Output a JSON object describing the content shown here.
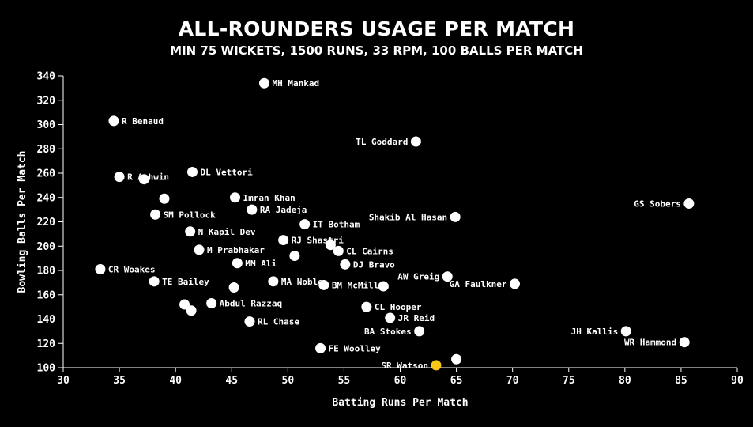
{
  "chart_data": {
    "type": "scatter",
    "title": "ALL-ROUNDERS USAGE PER MATCH",
    "subtitle": "MIN 75 WICKETS, 1500 RUNS, 33 RPM, 100 BALLS PER MATCH",
    "xlabel": "Batting Runs Per Match",
    "ylabel": "Bowling Balls Per Match",
    "xlim": [
      30,
      90
    ],
    "ylim": [
      100,
      340
    ],
    "xticks": [
      30,
      35,
      40,
      45,
      50,
      55,
      60,
      65,
      70,
      75,
      80,
      85,
      90
    ],
    "yticks": [
      100,
      120,
      140,
      160,
      180,
      200,
      220,
      240,
      260,
      280,
      300,
      320,
      340
    ],
    "grid": false,
    "colors": {
      "default": "#ffffff",
      "highlight": "#f5c518"
    },
    "points": [
      {
        "label": "MH Mankad",
        "x": 47.9,
        "y": 334,
        "anchor": "right"
      },
      {
        "label": "R Benaud",
        "x": 34.5,
        "y": 303,
        "anchor": "right"
      },
      {
        "label": "TL Goddard",
        "x": 61.4,
        "y": 286,
        "anchor": "left"
      },
      {
        "label": "DL Vettori",
        "x": 41.5,
        "y": 261,
        "anchor": "right"
      },
      {
        "label": "R Ashwin",
        "x": 35.0,
        "y": 257,
        "anchor": "right"
      },
      {
        "label": "",
        "x": 37.2,
        "y": 255
      },
      {
        "label": "Imran Khan",
        "x": 45.3,
        "y": 240,
        "anchor": "right"
      },
      {
        "label": "",
        "x": 39.0,
        "y": 239
      },
      {
        "label": "GS Sobers",
        "x": 85.7,
        "y": 235,
        "anchor": "left"
      },
      {
        "label": "RA Jadeja",
        "x": 46.8,
        "y": 230,
        "anchor": "right"
      },
      {
        "label": "SM Pollock",
        "x": 38.2,
        "y": 226,
        "anchor": "right"
      },
      {
        "label": "Shakib Al Hasan",
        "x": 64.9,
        "y": 224,
        "anchor": "left"
      },
      {
        "label": "IT Botham",
        "x": 51.5,
        "y": 218,
        "anchor": "right"
      },
      {
        "label": "N Kapil Dev",
        "x": 41.3,
        "y": 212,
        "anchor": "right"
      },
      {
        "label": "RJ Shastri",
        "x": 49.6,
        "y": 205,
        "anchor": "right"
      },
      {
        "label": "",
        "x": 53.8,
        "y": 201
      },
      {
        "label": "M Prabhakar",
        "x": 42.1,
        "y": 197,
        "anchor": "right"
      },
      {
        "label": "CL Cairns",
        "x": 54.5,
        "y": 196,
        "anchor": "right"
      },
      {
        "label": "",
        "x": 50.6,
        "y": 192
      },
      {
        "label": "MM Ali",
        "x": 45.5,
        "y": 186,
        "anchor": "right"
      },
      {
        "label": "DJ Bravo",
        "x": 55.1,
        "y": 185,
        "anchor": "right"
      },
      {
        "label": "CR Woakes",
        "x": 33.3,
        "y": 181,
        "anchor": "right"
      },
      {
        "label": "AW Greig",
        "x": 64.2,
        "y": 175,
        "anchor": "left"
      },
      {
        "label": "TE Bailey",
        "x": 38.1,
        "y": 171,
        "anchor": "right"
      },
      {
        "label": "MA Noble",
        "x": 48.7,
        "y": 171,
        "anchor": "right"
      },
      {
        "label": "GA Faulkner",
        "x": 70.2,
        "y": 169,
        "anchor": "left"
      },
      {
        "label": "BM McMillan",
        "x": 53.2,
        "y": 168,
        "anchor": "right"
      },
      {
        "label": "",
        "x": 58.5,
        "y": 167
      },
      {
        "label": "",
        "x": 45.2,
        "y": 166
      },
      {
        "label": "",
        "x": 40.8,
        "y": 152
      },
      {
        "label": "Abdul Razzaq",
        "x": 43.2,
        "y": 153,
        "anchor": "right"
      },
      {
        "label": "CL Hooper",
        "x": 57.0,
        "y": 150,
        "anchor": "right"
      },
      {
        "label": "",
        "x": 41.4,
        "y": 147
      },
      {
        "label": "JR Reid",
        "x": 59.1,
        "y": 141,
        "anchor": "right"
      },
      {
        "label": "RL Chase",
        "x": 46.6,
        "y": 138,
        "anchor": "right"
      },
      {
        "label": "BA Stokes",
        "x": 61.7,
        "y": 130,
        "anchor": "left"
      },
      {
        "label": "JH Kallis",
        "x": 80.1,
        "y": 130,
        "anchor": "left"
      },
      {
        "label": "WR Hammond",
        "x": 85.3,
        "y": 121,
        "anchor": "left"
      },
      {
        "label": "FE Woolley",
        "x": 52.9,
        "y": 116,
        "anchor": "right"
      },
      {
        "label": "",
        "x": 65.0,
        "y": 107
      },
      {
        "label": "SR Watson",
        "x": 63.2,
        "y": 102,
        "anchor": "left",
        "highlight": true
      }
    ]
  }
}
